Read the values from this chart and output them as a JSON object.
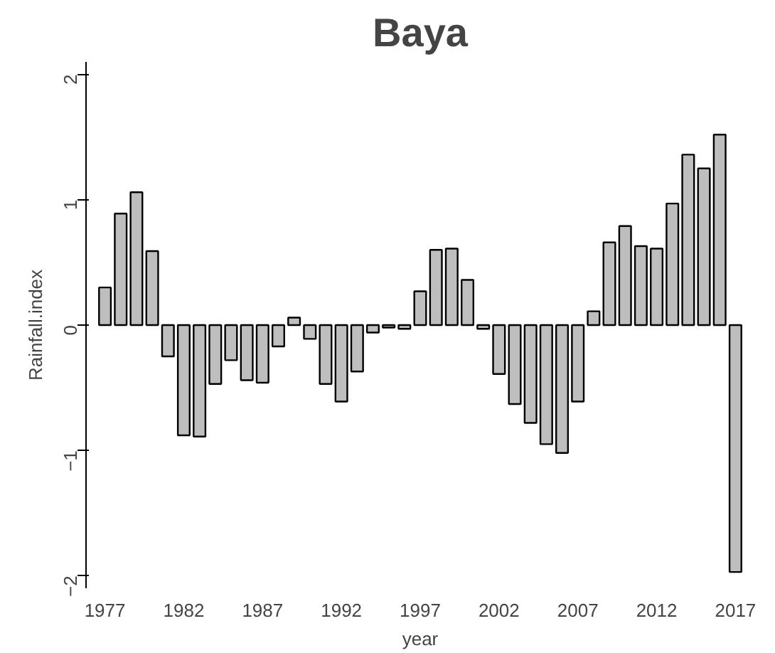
{
  "chart_data": {
    "type": "bar",
    "title": "Baya",
    "xlabel": "year",
    "ylabel": "Rainfall.index",
    "categories": [
      "1977",
      null,
      null,
      null,
      null,
      "1982",
      null,
      null,
      null,
      null,
      "1987",
      null,
      null,
      null,
      null,
      "1992",
      null,
      null,
      null,
      null,
      "1997",
      null,
      null,
      null,
      null,
      "2002",
      null,
      null,
      null,
      null,
      "2007",
      null,
      null,
      null,
      null,
      "2012",
      null,
      null,
      null,
      null,
      "2017"
    ],
    "values": [
      0.3,
      0.89,
      1.06,
      0.59,
      -0.25,
      -0.88,
      -0.89,
      -0.47,
      -0.28,
      -0.44,
      -0.46,
      -0.17,
      0.06,
      -0.11,
      -0.47,
      -0.61,
      -0.37,
      -0.06,
      -0.02,
      -0.03,
      0.27,
      0.6,
      0.61,
      0.36,
      -0.03,
      -0.39,
      -0.63,
      -0.78,
      -0.95,
      -1.02,
      -0.61,
      0.11,
      0.66,
      0.79,
      0.63,
      0.61,
      0.97,
      1.36,
      1.25,
      1.52,
      -1.97
    ],
    "color": "#bebebe",
    "ylim": [
      -2.1,
      2.1
    ],
    "yticks": [
      -2,
      -1,
      0,
      1,
      2
    ],
    "grid": false
  }
}
